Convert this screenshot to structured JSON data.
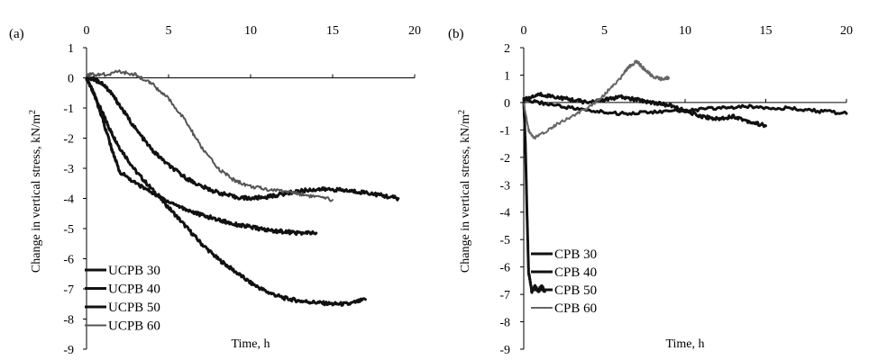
{
  "chart_data": [
    {
      "type": "line",
      "panel_label": "(a)",
      "xlabel": "Time, h",
      "ylabel": "Change in vertical stress, kN/m",
      "ylabel_superscript": "2",
      "xlim": [
        0,
        20
      ],
      "ylim": [
        -9,
        1
      ],
      "xticks": [
        "0",
        "5",
        "10",
        "15",
        "20"
      ],
      "yticks": [
        "1",
        "0",
        "-1",
        "-2",
        "-3",
        "-4",
        "-5",
        "-6",
        "-7",
        "-8",
        "-9"
      ],
      "legend_position": "bottom-left",
      "grid": false,
      "series": [
        {
          "name": "UCPB 30",
          "color": "#111111",
          "x": [
            0,
            0.5,
            1,
            1.5,
            2,
            3,
            4,
            5,
            6,
            7,
            8,
            9,
            10,
            11,
            12,
            13,
            14,
            15,
            16,
            17
          ],
          "y": [
            0,
            -0.6,
            -1.2,
            -1.8,
            -2.3,
            -3.1,
            -3.7,
            -4.3,
            -4.9,
            -5.5,
            -6.0,
            -6.4,
            -6.8,
            -7.1,
            -7.3,
            -7.4,
            -7.45,
            -7.5,
            -7.5,
            -7.35
          ]
        },
        {
          "name": "UCPB 40",
          "color": "#111111",
          "x": [
            0,
            0.5,
            1,
            1.5,
            2,
            3,
            4,
            5,
            6,
            7,
            8,
            9,
            10,
            11,
            12,
            13,
            14,
            15,
            16,
            17,
            18,
            19
          ],
          "y": [
            0,
            -0.05,
            -0.2,
            -0.5,
            -0.9,
            -1.7,
            -2.4,
            -2.9,
            -3.3,
            -3.6,
            -3.8,
            -3.95,
            -4.0,
            -3.95,
            -3.85,
            -3.75,
            -3.7,
            -3.7,
            -3.75,
            -3.8,
            -3.9,
            -4.0
          ]
        },
        {
          "name": "UCPB 50",
          "color": "#111111",
          "x": [
            0,
            0.5,
            1,
            1.5,
            2,
            3,
            4,
            5,
            6,
            7,
            8,
            9,
            10,
            11,
            12,
            13,
            14
          ],
          "y": [
            0,
            -0.6,
            -1.4,
            -2.3,
            -3.1,
            -3.5,
            -3.8,
            -4.1,
            -4.35,
            -4.55,
            -4.7,
            -4.85,
            -4.95,
            -5.05,
            -5.1,
            -5.15,
            -5.15
          ]
        },
        {
          "name": "UCPB 60",
          "color": "#555555",
          "x": [
            0,
            1,
            2,
            3,
            4,
            5,
            6,
            7,
            8,
            9,
            10,
            11,
            12,
            13,
            14,
            15
          ],
          "y": [
            0.1,
            0.1,
            0.2,
            0.1,
            -0.2,
            -0.7,
            -1.4,
            -2.3,
            -3.0,
            -3.4,
            -3.6,
            -3.7,
            -3.75,
            -3.85,
            -3.95,
            -4.05
          ]
        }
      ]
    },
    {
      "type": "line",
      "panel_label": "(b)",
      "xlabel": "Time, h",
      "ylabel": "Change in vertical stress, kN/m",
      "ylabel_superscript": "2",
      "xlim": [
        0,
        20
      ],
      "ylim": [
        -9,
        2
      ],
      "xticks": [
        "0",
        "5",
        "10",
        "15",
        "20"
      ],
      "yticks": [
        "2",
        "1",
        "0",
        "-1",
        "-2",
        "-3",
        "-4",
        "-5",
        "-6",
        "-7",
        "-8",
        "-9"
      ],
      "legend_position": "bottom-left",
      "grid": false,
      "series": [
        {
          "name": "CPB 30",
          "color": "#111111",
          "x": [
            0,
            0.1,
            0.2,
            0.3,
            0.5,
            0.7,
            0.9,
            1.1,
            1.3
          ],
          "y": [
            0,
            -1.5,
            -4.0,
            -6.2,
            -6.9,
            -6.7,
            -6.9,
            -6.7,
            -6.9
          ]
        },
        {
          "name": "CPB 40",
          "color": "#111111",
          "x": [
            0,
            1,
            2,
            3,
            4,
            5,
            6,
            7,
            8,
            9,
            10,
            11,
            12,
            13,
            14,
            15
          ],
          "y": [
            0.1,
            0.3,
            0.2,
            0.1,
            0.0,
            0.1,
            0.2,
            0.1,
            0.0,
            -0.1,
            -0.3,
            -0.5,
            -0.6,
            -0.5,
            -0.7,
            -0.85
          ]
        },
        {
          "name": "CPB 50",
          "color": "#111111",
          "x": [
            0,
            2,
            4,
            6,
            8,
            10,
            12,
            14,
            16,
            18,
            20
          ],
          "y": [
            0.1,
            -0.1,
            -0.3,
            -0.4,
            -0.35,
            -0.3,
            -0.2,
            -0.15,
            -0.2,
            -0.3,
            -0.4
          ]
        },
        {
          "name": "CPB 60",
          "color": "#666666",
          "x": [
            0,
            0.3,
            0.6,
            1,
            2,
            3,
            4,
            5,
            6,
            6.5,
            7,
            7.5,
            8,
            8.5,
            9
          ],
          "y": [
            0,
            -1.0,
            -1.3,
            -1.2,
            -0.8,
            -0.5,
            -0.2,
            0.3,
            0.9,
            1.3,
            1.5,
            1.2,
            0.95,
            0.85,
            0.9
          ]
        }
      ]
    }
  ]
}
